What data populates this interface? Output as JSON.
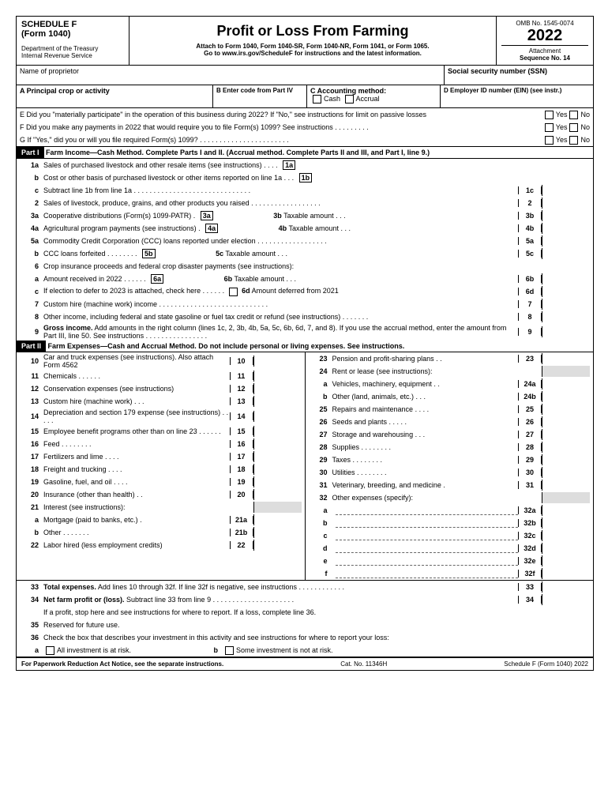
{
  "header": {
    "schedule": "SCHEDULE F",
    "form": "(Form 1040)",
    "dept": "Department of the Treasury",
    "irs": "Internal Revenue Service",
    "title": "Profit or Loss From Farming",
    "attach": "Attach to Form 1040, Form 1040-SR, Form 1040-NR, Form 1041, or Form 1065.",
    "goto": "Go to www.irs.gov/ScheduleF for instructions and the latest information.",
    "omb": "OMB No. 1545-0074",
    "year": "2022",
    "attseq": "Attachment",
    "seqno": "Sequence No. 14"
  },
  "name": {
    "label": "Name of proprietor",
    "ssn": "Social security number (SSN)"
  },
  "secA": {
    "A": "A  Principal crop or activity",
    "B": "B  Enter code from Part IV",
    "C": "C  Accounting method:",
    "Ccash": "Cash",
    "Caccr": "Accrual",
    "D": "D  Employer ID number (EIN) (see instr.)"
  },
  "E": "E  Did you \"materially participate\" in the operation of this business during 2022? If \"No,\" see instructions for limit on passive losses",
  "F": "F  Did you make any payments in 2022 that would require you to file Form(s) 1099? See instructions  .  .  .  .  .  .  .  .  .",
  "G": "G  If \"Yes,\" did you or will you file required Form(s) 1099?  .  .  .  .  .  .  .  .  .  .  .  .  .  .  .  .  .  .  .  .  .  .  .",
  "yes": "Yes",
  "no": "No",
  "part1": {
    "label": "Part I",
    "title": "Farm Income—Cash Method. Complete Parts I and II. (Accrual method. Complete Parts II and III, and Part I, line 9.)"
  },
  "p1": {
    "1a": "Sales of purchased livestock and other resale items (see instructions)  .  .  .  .",
    "1b": "Cost or other basis of purchased livestock or other items reported on line 1a  .  .  .",
    "1c": "Subtract line 1b from line 1a .  .  .  .  .  .  .  .  .  .  .  .  .  .  .  .  .  .  .  .  .  .  .  .  .  .  .  .  .  .",
    "2": "Sales of livestock, produce, grains, and other products you raised  .  .  .  .  .  .  .  .  .  .  .  .  .  .  .  .  .  .",
    "3a": "Cooperative distributions (Form(s) 1099-PATR)  .",
    "3b": "Taxable amount  .  .  .",
    "4a": "Agricultural program payments (see instructions) .",
    "4b": "Taxable amount  .  .  .",
    "5a": "Commodity Credit Corporation (CCC) loans reported under election .  .  .  .  .  .  .  .  .  .  .  .  .  .  .  .  .  .",
    "5b": "CCC loans forfeited  .  .  .  .  .  .  .  .",
    "5c": "Taxable amount  .  .  .",
    "6": "Crop insurance proceeds and federal crop disaster payments (see instructions):",
    "6a": "Amount received in 2022  .  .  .  .  .  .",
    "6b": "Taxable amount  .  .  .",
    "6c": "If election to defer to 2023 is attached, check here  .  .  .  .  .  .",
    "6d": "Amount deferred from 2021",
    "7": "Custom hire (machine work) income  .  .  .  .  .  .  .  .  .  .  .  .  .  .  .  .  .  .  .  .  .  .  .  .  .  .  .  .",
    "8": "Other income, including federal and state gasoline or fuel tax credit or refund (see instructions)  .  .  .  .  .  .  .",
    "9": "Gross income. Add amounts in the right column (lines 1c, 2, 3b, 4b, 5a, 5c, 6b, 6d, 7, and 8). If you use the accrual method, enter the amount from Part III, line 50. See instructions .  .  .  .  .  .  .  .  .  .  .  .  .  .  .  ."
  },
  "part2": {
    "label": "Part II",
    "title": "Farm Expenses—Cash and Accrual Method.  Do not include personal or living expenses. See instructions."
  },
  "left": [
    {
      "n": "10",
      "t": "Car and truck expenses (see instructions). Also attach Form 4562",
      "b": "10"
    },
    {
      "n": "11",
      "t": "Chemicals  .  .  .  .  .  .",
      "b": "11"
    },
    {
      "n": "12",
      "t": "Conservation expenses (see instructions)",
      "b": "12"
    },
    {
      "n": "13",
      "t": "Custom hire (machine work)  .  .  .",
      "b": "13"
    },
    {
      "n": "14",
      "t": "Depreciation and section 179 expense (see instructions)  .  .  .  .  .",
      "b": "14"
    },
    {
      "n": "15",
      "t": "Employee benefit programs other than on line 23  .  .  .  .  .  .",
      "b": "15"
    },
    {
      "n": "16",
      "t": "Feed  .  .  .  .  .  .  .  .",
      "b": "16"
    },
    {
      "n": "17",
      "t": "Fertilizers and lime  .  .  .  .",
      "b": "17"
    },
    {
      "n": "18",
      "t": "Freight and trucking  .  .  .  .",
      "b": "18"
    },
    {
      "n": "19",
      "t": "Gasoline, fuel, and oil .  .  .  .",
      "b": "19"
    },
    {
      "n": "20",
      "t": "Insurance (other than health)  .  .",
      "b": "20"
    },
    {
      "n": "21",
      "t": "Interest (see instructions):",
      "b": ""
    },
    {
      "n": "a",
      "t": "Mortgage (paid to banks, etc.)  .",
      "b": "21a"
    },
    {
      "n": "b",
      "t": "Other  .  .  .  .  .  .  .",
      "b": "21b"
    },
    {
      "n": "22",
      "t": "Labor hired (less employment credits)",
      "b": "22"
    }
  ],
  "right": [
    {
      "n": "23",
      "t": "Pension and profit-sharing plans .  .",
      "b": "23"
    },
    {
      "n": "24",
      "t": "Rent or lease (see instructions):",
      "b": ""
    },
    {
      "n": "a",
      "t": "Vehicles, machinery, equipment  .  .",
      "b": "24a"
    },
    {
      "n": "b",
      "t": "Other (land, animals, etc.)  .  .  .",
      "b": "24b"
    },
    {
      "n": "25",
      "t": "Repairs and maintenance .  .  .  .",
      "b": "25"
    },
    {
      "n": "26",
      "t": "Seeds and plants  .  .  .  .  .",
      "b": "26"
    },
    {
      "n": "27",
      "t": "Storage and warehousing  .  .  .",
      "b": "27"
    },
    {
      "n": "28",
      "t": "Supplies .  .  .  .  .  .  .  .",
      "b": "28"
    },
    {
      "n": "29",
      "t": "Taxes  .  .  .  .  .  .  .  .",
      "b": "29"
    },
    {
      "n": "30",
      "t": "Utilities  .  .  .  .  .  .  .  .",
      "b": "30"
    },
    {
      "n": "31",
      "t": "Veterinary, breeding, and medicine  .",
      "b": "31"
    },
    {
      "n": "32",
      "t": "Other expenses (specify):",
      "b": ""
    },
    {
      "n": "a",
      "t": "",
      "b": "32a",
      "dash": true
    },
    {
      "n": "b",
      "t": "",
      "b": "32b",
      "dash": true
    },
    {
      "n": "c",
      "t": "",
      "b": "32c",
      "dash": true
    },
    {
      "n": "d",
      "t": "",
      "b": "32d",
      "dash": true
    },
    {
      "n": "e",
      "t": "",
      "b": "32e",
      "dash": true
    },
    {
      "n": "f",
      "t": "",
      "b": "32f",
      "dash": true
    }
  ],
  "bottom": {
    "33": "Total expenses. Add lines 10 through 32f. If line 32f is negative, see instructions  .  .  .  .  .  .  .  .  .  .  .  .",
    "34": "Net farm profit or (loss). Subtract line 33 from line 9  .  .  .  .  .  .  .  .  .  .  .  .  .  .  .  .  .  .  .  .  .",
    "34b": "If a profit, stop here and see instructions for where to report. If a loss, complete line 36.",
    "35": "Reserved for future use.",
    "36": "Check the box that describes your investment in this activity and see instructions for where to report your loss:",
    "36a": "All investment is at risk.",
    "36b": "Some investment is not at risk."
  },
  "footer": {
    "left": "For Paperwork Reduction Act Notice, see the separate instructions.",
    "mid": "Cat. No. 11346H",
    "right": "Schedule F (Form 1040) 2022"
  }
}
